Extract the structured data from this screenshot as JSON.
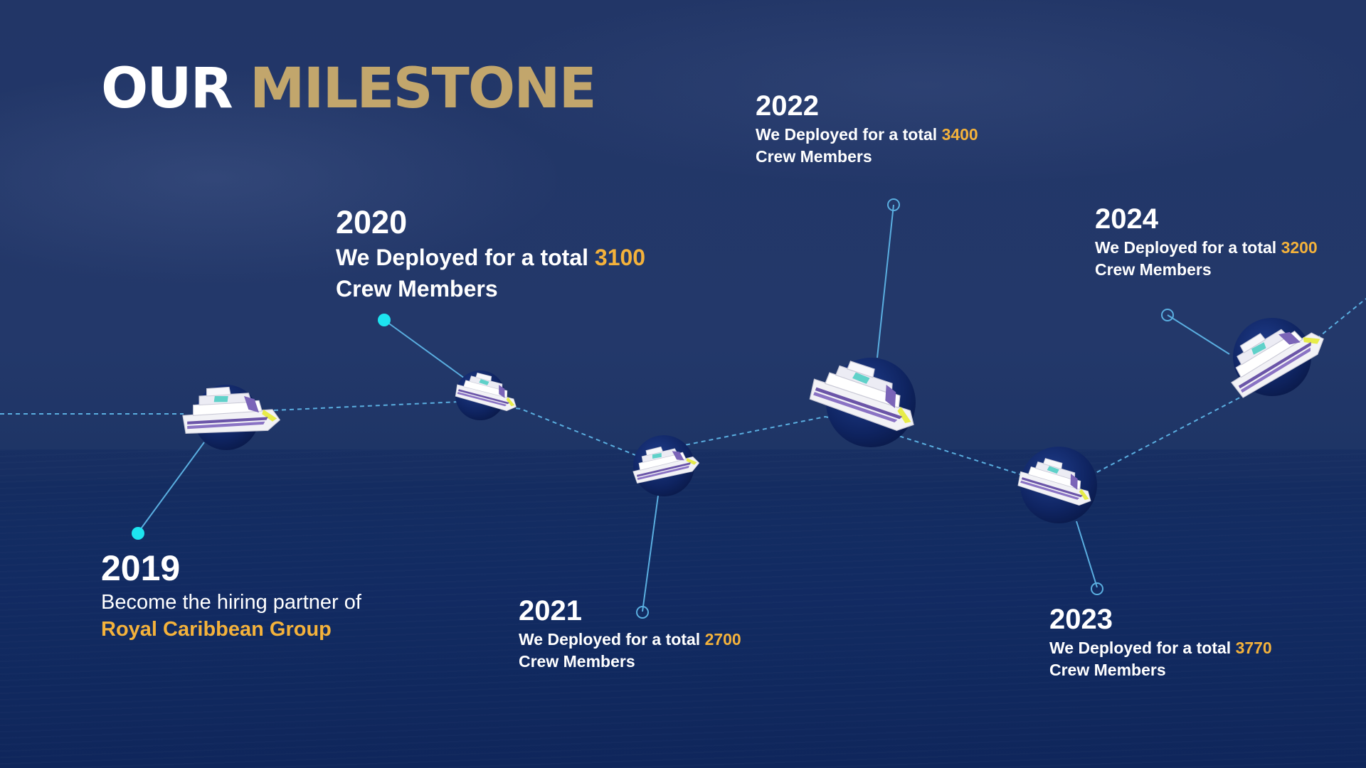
{
  "title": {
    "part1": "OUR",
    "part2": "MILESTONE"
  },
  "colors": {
    "accent_gold": "#c2a66c",
    "highlight_orange": "#f4b23b",
    "line_blue": "#5aaee0",
    "marker_cyan": "#1de4f0"
  },
  "milestones": [
    {
      "year": "2019",
      "line1": "Become the hiring partner of",
      "highlight": "Royal Caribbean Group"
    },
    {
      "year": "2020",
      "prefix": "We Deployed for a total",
      "count": "3100",
      "suffix": "Crew Members"
    },
    {
      "year": "2021",
      "prefix": "We Deployed for a total",
      "count": "2700",
      "suffix": "Crew Members"
    },
    {
      "year": "2022",
      "prefix": "We Deployed for a total",
      "count": "3400",
      "suffix": "Crew Members"
    },
    {
      "year": "2023",
      "prefix": "We Deployed for a total",
      "count": "3770",
      "suffix": "Crew Members"
    },
    {
      "year": "2024",
      "prefix": "We Deployed for a total",
      "count": "3200",
      "suffix": "Crew Members"
    }
  ],
  "icons": [
    "cruise-ship-icon"
  ]
}
